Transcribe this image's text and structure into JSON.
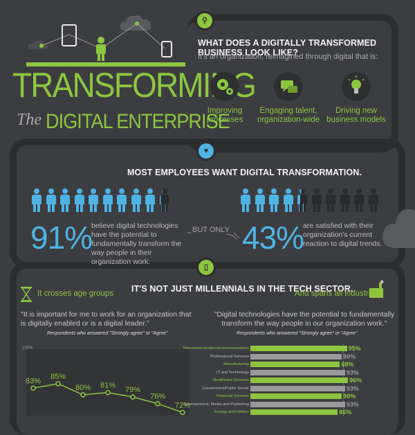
{
  "hero": {
    "title_line1": "TRANSFORMING",
    "title_the": "The",
    "title_line2": "DIGITAL ENTERPRISE"
  },
  "section1": {
    "heading": "WHAT DOES A DIGITALLY TRANSFORMED BUSINESS LOOK LIKE?",
    "subheading": "It's an organization, reimagined through digital that is:",
    "features": [
      {
        "icon": "gears-icon",
        "label_line1": "Improving",
        "label_line2": "processes"
      },
      {
        "icon": "chat-bubbles-icon",
        "label_line1": "Engaging talent,",
        "label_line2": "organization-wide"
      },
      {
        "icon": "lightbulb-icon",
        "label_line1": "Driving new",
        "label_line2": "business models"
      }
    ]
  },
  "section2": {
    "heading": "MOST EMPLOYEES WANT DIGITAL TRANSFORMATION.",
    "stat1_pct": "91%",
    "stat1_text": "believe digital technologies have the potential to fundamentally transform the way people in their organization work.",
    "connector": "BUT ONLY",
    "stat2_pct": "43%",
    "stat2_text": "are satisfied with their organization's current reaction to digital trends.",
    "stat1_level": 0.91,
    "stat2_level": 0.43
  },
  "section3": {
    "heading": "IT'S NOT JUST MILLENNIALS IN THE TECH SECTOR.",
    "left_label": "It crosses age groups",
    "left_quote": "\"It is important for me to work for an organization that is digitally enabled or is a digital leader.\"",
    "left_caption": "Respondents who answered \"Strongly agree\" or \"Agree\"",
    "right_label": "And spans all industries",
    "right_quote": "\"Digital technologies have the potential to fundamentally transform the way people in our organization work.\"",
    "right_caption": "Respondents who answered \"Strongly agree\" or \"Agree\""
  },
  "colors": {
    "accent": "#8dc63f",
    "blue": "#4fb3e4",
    "background": "#3c3d40",
    "road": "#2c2d2f",
    "grey_bar": "#9a9a9a"
  },
  "chart_data": [
    {
      "type": "line",
      "ytick_top": "100%",
      "values": [
        83,
        85,
        80,
        81,
        79,
        76,
        72
      ],
      "labels": [
        "83%",
        "85%",
        "80%",
        "81%",
        "79%",
        "76%",
        "72%"
      ],
      "ylim": [
        0,
        100
      ]
    },
    {
      "type": "bar",
      "categories": [
        "Telecommunications/communications",
        "Professional Services",
        "Manufacturing",
        "IT and Technology",
        "Healthcare Services",
        "Government/Public Sector",
        "Financial Services",
        "Entertainment, Media and Publishing",
        "Energy and Utilities"
      ],
      "values": [
        95,
        90,
        88,
        93,
        96,
        93,
        90,
        93,
        86
      ],
      "labels": [
        "95%",
        "90%",
        "88%",
        "93%",
        "96%",
        "93%",
        "90%",
        "93%",
        "86%"
      ],
      "highlight": [
        true,
        false,
        true,
        false,
        true,
        false,
        true,
        false,
        true
      ],
      "xlim": [
        0,
        100
      ]
    }
  ]
}
